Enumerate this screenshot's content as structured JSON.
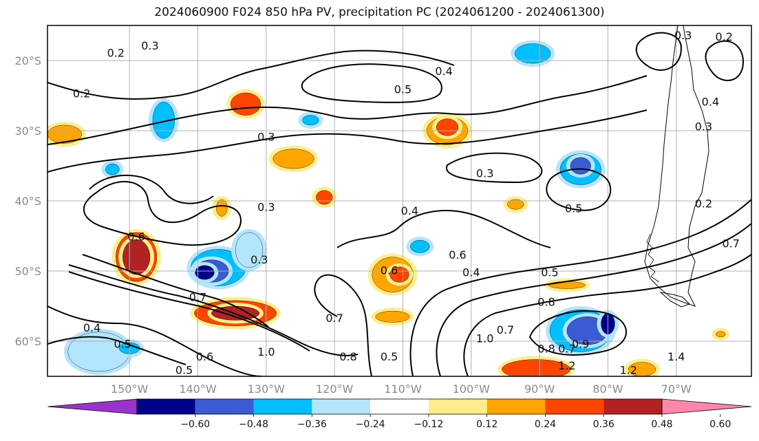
{
  "title": "2024060900 F024 850 hPa PV, precipitation PC (2024061200 - 2024061300)",
  "map": {
    "lat_labels": [
      {
        "text": "20°S",
        "lat": -20
      },
      {
        "text": "30°S",
        "lat": -30
      },
      {
        "text": "40°S",
        "lat": -40
      },
      {
        "text": "50°S",
        "lat": -50
      },
      {
        "text": "60°S",
        "lat": -60
      }
    ],
    "lon_labels": [
      {
        "text": "150°W",
        "lon": -150
      },
      {
        "text": "140°W",
        "lon": -140
      },
      {
        "text": "130°W",
        "lon": -130
      },
      {
        "text": "120°W",
        "lon": -120
      },
      {
        "text": "110°W",
        "lon": -110
      },
      {
        "text": "100°W",
        "lon": -100
      },
      {
        "text": "90°W",
        "lon": -90
      },
      {
        "text": "80°W",
        "lon": -80
      },
      {
        "text": "70°W",
        "lon": -70
      }
    ],
    "lon_range": [
      -162,
      -59
    ],
    "lat_range": [
      -65,
      -15
    ],
    "contour_labels": [
      {
        "text": "0.3",
        "lon": -147,
        "lat": -18
      },
      {
        "text": "0.2",
        "lon": -152,
        "lat": -19
      },
      {
        "text": "0.4",
        "lon": -104,
        "lat": -21.6
      },
      {
        "text": "0.5",
        "lon": -110,
        "lat": -24.2
      },
      {
        "text": "0.2",
        "lon": -157,
        "lat": -24.8
      },
      {
        "text": "0.3",
        "lon": -130,
        "lat": -31
      },
      {
        "text": "0.3",
        "lon": -98,
        "lat": -36.2
      },
      {
        "text": "0.3",
        "lon": -130,
        "lat": -41
      },
      {
        "text": "0.4",
        "lon": -109,
        "lat": -41.5
      },
      {
        "text": "0.5",
        "lon": -85,
        "lat": -41.2
      },
      {
        "text": "0.6",
        "lon": -149,
        "lat": -45.2
      },
      {
        "text": "0.6",
        "lon": -102,
        "lat": -47.8
      },
      {
        "text": "0.3",
        "lon": -131,
        "lat": -48.5
      },
      {
        "text": "0.6",
        "lon": -112,
        "lat": -50
      },
      {
        "text": "0.4",
        "lon": -100,
        "lat": -50.3
      },
      {
        "text": "0.5",
        "lon": -88.5,
        "lat": -50.3
      },
      {
        "text": "0.7",
        "lon": -140,
        "lat": -53.8
      },
      {
        "text": "0.8",
        "lon": -89,
        "lat": -54.5
      },
      {
        "text": "0.7",
        "lon": -120,
        "lat": -56.8
      },
      {
        "text": "0.4",
        "lon": -155.5,
        "lat": -58.2
      },
      {
        "text": "0.5",
        "lon": -151,
        "lat": -60.5
      },
      {
        "text": "1.0",
        "lon": -98,
        "lat": -59.7
      },
      {
        "text": "0.7",
        "lon": -95,
        "lat": -58.5
      },
      {
        "text": "0.8",
        "lon": -89,
        "lat": -61.2
      },
      {
        "text": "0.7",
        "lon": -86,
        "lat": -61.2
      },
      {
        "text": "0.9",
        "lon": -84,
        "lat": -60.5
      },
      {
        "text": "1.0",
        "lon": -130,
        "lat": -61.6
      },
      {
        "text": "0.8",
        "lon": -118,
        "lat": -62.3
      },
      {
        "text": "0.5",
        "lon": -112,
        "lat": -62.3
      },
      {
        "text": "0.6",
        "lon": -139,
        "lat": -62.3
      },
      {
        "text": "0.5",
        "lon": -142,
        "lat": -64.2
      },
      {
        "text": "1.2",
        "lon": -86,
        "lat": -63.6
      },
      {
        "text": "1.4",
        "lon": -70,
        "lat": -62.3
      },
      {
        "text": "1.2",
        "lon": -77,
        "lat": -64.2
      },
      {
        "text": "0.3",
        "lon": -69,
        "lat": -16.5
      },
      {
        "text": "0.2",
        "lon": -63,
        "lat": -16.7
      },
      {
        "text": "0.4",
        "lon": -65,
        "lat": -26
      },
      {
        "text": "0.3",
        "lon": -66,
        "lat": -29.5
      },
      {
        "text": "0.2",
        "lon": -66,
        "lat": -40.5
      },
      {
        "text": "0.7",
        "lon": -62,
        "lat": -46.2
      }
    ]
  },
  "colorbar": {
    "colors": [
      "#9933cc",
      "#00008b",
      "#3a5bd3",
      "#00bfff",
      "#b3e5fc",
      "#ffffff",
      "#ffec8b",
      "#ffa500",
      "#ff4500",
      "#b22222",
      "#ff88aa"
    ],
    "tick_labels": [
      "−0.60",
      "−0.48",
      "−0.36",
      "−0.24",
      "−0.12",
      "0.12",
      "0.24",
      "0.36",
      "0.48",
      "0.60"
    ]
  },
  "precip_blobs": [
    {
      "lon": -154.5,
      "lat": -61.5,
      "rx": 4.5,
      "ry": 2.8,
      "level": 4
    },
    {
      "lon": -150,
      "lat": -61,
      "rx": 1.5,
      "ry": 0.8,
      "level": 3
    },
    {
      "lon": -137,
      "lat": -49.5,
      "rx": 4,
      "ry": 2.6,
      "level": 3
    },
    {
      "lon": -138,
      "lat": -50,
      "rx": 2.5,
      "ry": 1.6,
      "level": 2
    },
    {
      "lon": -139,
      "lat": -50.2,
      "rx": 1.4,
      "ry": 1,
      "level": 1
    },
    {
      "lon": -132.5,
      "lat": -47,
      "rx": 2,
      "ry": 2.5,
      "level": 4
    },
    {
      "lon": -149,
      "lat": -48,
      "rx": 3,
      "ry": 3.5,
      "level": 8
    },
    {
      "lon": -149,
      "lat": -48,
      "rx": 2,
      "ry": 2.5,
      "level": 9
    },
    {
      "lon": -134.5,
      "lat": -56,
      "rx": 6,
      "ry": 1.8,
      "level": 8
    },
    {
      "lon": -134.5,
      "lat": -56,
      "rx": 3.5,
      "ry": 1,
      "level": 9
    },
    {
      "lon": -133,
      "lat": -26.2,
      "rx": 2.2,
      "ry": 1.6,
      "level": 8
    },
    {
      "lon": -159.5,
      "lat": -30.5,
      "rx": 2.5,
      "ry": 1.3,
      "level": 7
    },
    {
      "lon": -126,
      "lat": -34,
      "rx": 3,
      "ry": 1.4,
      "level": 7
    },
    {
      "lon": -121.5,
      "lat": -39.5,
      "rx": 1.2,
      "ry": 1,
      "level": 8
    },
    {
      "lon": -103.5,
      "lat": -30,
      "rx": 3,
      "ry": 2,
      "level": 7
    },
    {
      "lon": -103.5,
      "lat": -29.5,
      "rx": 1.6,
      "ry": 1.2,
      "level": 8
    },
    {
      "lon": -111.5,
      "lat": -50.5,
      "rx": 3,
      "ry": 2.5,
      "level": 7
    },
    {
      "lon": -110.5,
      "lat": -50.5,
      "rx": 1.4,
      "ry": 1.1,
      "level": 8
    },
    {
      "lon": -111.5,
      "lat": -56.5,
      "rx": 2.5,
      "ry": 0.8,
      "level": 7
    },
    {
      "lon": -90.5,
      "lat": -64,
      "rx": 5,
      "ry": 1.4,
      "level": 8
    },
    {
      "lon": -84,
      "lat": -58.5,
      "rx": 4.5,
      "ry": 3,
      "level": 3
    },
    {
      "lon": -83,
      "lat": -58.5,
      "rx": 3,
      "ry": 2,
      "level": 2
    },
    {
      "lon": -80,
      "lat": -57.5,
      "rx": 1,
      "ry": 1.5,
      "level": 1
    },
    {
      "lon": -84,
      "lat": -35.5,
      "rx": 3,
      "ry": 2.2,
      "level": 3
    },
    {
      "lon": -84,
      "lat": -35,
      "rx": 1.5,
      "ry": 1.2,
      "level": 2
    },
    {
      "lon": -91,
      "lat": -19,
      "rx": 2.6,
      "ry": 1.4,
      "level": 3
    },
    {
      "lon": -145,
      "lat": -28.5,
      "rx": 1.6,
      "ry": 2.6,
      "level": 3
    },
    {
      "lon": -152.5,
      "lat": -35.5,
      "rx": 1,
      "ry": 0.8,
      "level": 3
    },
    {
      "lon": -123.5,
      "lat": -28.5,
      "rx": 1.2,
      "ry": 0.7,
      "level": 3
    },
    {
      "lon": -107.5,
      "lat": -46.5,
      "rx": 1.4,
      "ry": 0.9,
      "level": 3
    },
    {
      "lon": -93.5,
      "lat": -40.5,
      "rx": 1.2,
      "ry": 0.7,
      "level": 7
    },
    {
      "lon": -75,
      "lat": -64,
      "rx": 2,
      "ry": 1,
      "level": 7
    },
    {
      "lon": -86,
      "lat": -52,
      "rx": 2.7,
      "ry": 0.5,
      "level": 7
    },
    {
      "lon": -136.5,
      "lat": -41,
      "rx": 0.8,
      "ry": 1.2,
      "level": 7
    },
    {
      "lon": -63.5,
      "lat": -59,
      "rx": 0.7,
      "ry": 0.4,
      "level": 7
    }
  ]
}
